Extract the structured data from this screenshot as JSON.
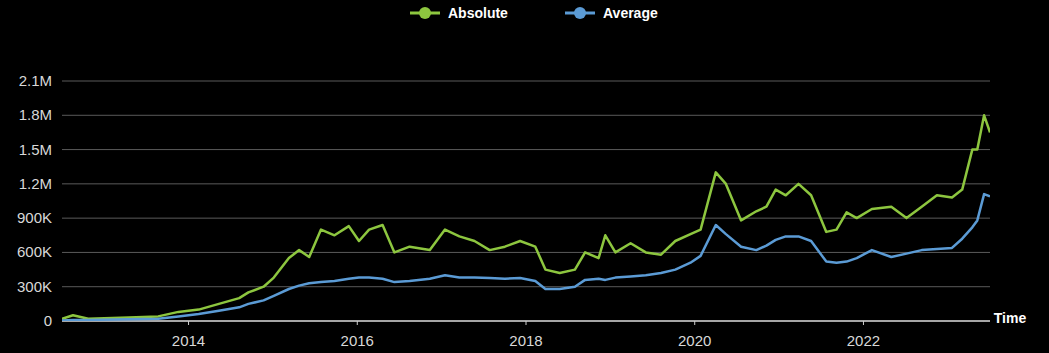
{
  "chart_data": {
    "type": "line",
    "x_label": "Time",
    "x": [
      2012.5,
      2012.63,
      2012.81,
      2013.29,
      2013.64,
      2013.88,
      2014.12,
      2014.36,
      2014.6,
      2014.71,
      2014.89,
      2015.01,
      2015.19,
      2015.31,
      2015.43,
      2015.57,
      2015.73,
      2015.9,
      2016.02,
      2016.14,
      2016.3,
      2016.44,
      2016.62,
      2016.86,
      2017.04,
      2017.21,
      2017.39,
      2017.57,
      2017.75,
      2017.93,
      2018.11,
      2018.23,
      2018.4,
      2018.58,
      2018.7,
      2018.86,
      2018.94,
      2019.06,
      2019.24,
      2019.42,
      2019.6,
      2019.77,
      2019.95,
      2020.07,
      2020.25,
      2020.37,
      2020.55,
      2020.73,
      2020.85,
      2020.96,
      2021.08,
      2021.23,
      2021.38,
      2021.56,
      2021.68,
      2021.8,
      2021.92,
      2022.1,
      2022.33,
      2022.51,
      2022.69,
      2022.87,
      2023.05,
      2023.17,
      2023.29,
      2023.35,
      2023.43,
      2023.5
    ],
    "series": [
      {
        "name": "Absolute",
        "color": "#8dc63f",
        "values": [
          20000,
          50000,
          20000,
          30000,
          40000,
          80000,
          100000,
          150000,
          200000,
          250000,
          300000,
          380000,
          550000,
          620000,
          560000,
          800000,
          750000,
          830000,
          700000,
          800000,
          840000,
          600000,
          650000,
          620000,
          800000,
          740000,
          700000,
          620000,
          650000,
          700000,
          650000,
          450000,
          420000,
          450000,
          600000,
          550000,
          750000,
          600000,
          680000,
          600000,
          580000,
          700000,
          760000,
          800000,
          1300000,
          1200000,
          880000,
          960000,
          1000000,
          1150000,
          1100000,
          1200000,
          1100000,
          780000,
          800000,
          950000,
          900000,
          980000,
          1000000,
          900000,
          1000000,
          1100000,
          1080000,
          1150000,
          1500000,
          1500000,
          1800000,
          1650000
        ]
      },
      {
        "name": "Average",
        "color": "#5b9bd5",
        "values": [
          5000,
          8000,
          10000,
          15000,
          20000,
          40000,
          60000,
          90000,
          120000,
          150000,
          180000,
          220000,
          280000,
          310000,
          330000,
          340000,
          350000,
          370000,
          380000,
          380000,
          370000,
          340000,
          350000,
          370000,
          400000,
          380000,
          380000,
          375000,
          370000,
          375000,
          350000,
          280000,
          280000,
          300000,
          360000,
          370000,
          360000,
          380000,
          390000,
          400000,
          420000,
          450000,
          510000,
          570000,
          840000,
          760000,
          650000,
          620000,
          660000,
          710000,
          740000,
          740000,
          700000,
          520000,
          510000,
          520000,
          550000,
          620000,
          560000,
          590000,
          620000,
          630000,
          640000,
          720000,
          820000,
          880000,
          1110000,
          1090000
        ]
      }
    ],
    "xlim": [
      2012.5,
      2023.5
    ],
    "xticks": [
      2014,
      2016,
      2018,
      2020,
      2022
    ],
    "ylim": [
      0,
      2100000
    ],
    "yticks": [
      0,
      {
        "value": 300000,
        "label": "300K"
      },
      {
        "value": 600000,
        "label": "600K"
      },
      {
        "value": 900000,
        "label": "900K"
      },
      {
        "value": 1200000,
        "label": "1.2M"
      },
      {
        "value": 1500000,
        "label": "1.5M"
      },
      {
        "value": 1800000,
        "label": "1.8M"
      },
      {
        "value": 2100000,
        "label": "2.1M"
      }
    ],
    "grid": true,
    "legend": "top",
    "marker": "none"
  }
}
